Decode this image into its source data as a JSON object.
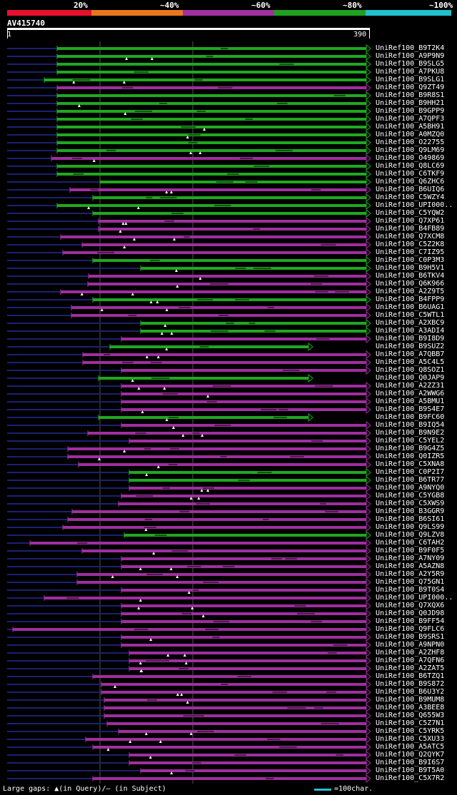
{
  "legend": {
    "labels": [
      "20%",
      "~40%",
      "~60%",
      "~80%",
      "~100%"
    ],
    "colors": [
      "#e8102e",
      "#e8781e",
      "#a030a0",
      "#20a020",
      "#22c0cc"
    ]
  },
  "query": {
    "name": "AV415740",
    "start": "1",
    "end": "390"
  },
  "footer": {
    "gaps_text": "Large gaps: ▲(in Query)/– (in Subject)",
    "scale_text": "=100char."
  },
  "colors": {
    "green": "#1fa81f",
    "purple": "#a02ea0",
    "unaligned": "#1a2270",
    "grid": "#555555"
  },
  "hits": [
    {
      "label": "UniRef100_B9T2K4",
      "c": "g"
    },
    {
      "label": "UniRef100_A9P9N9",
      "c": "g"
    },
    {
      "label": "UniRef100_B9SLG5",
      "c": "g"
    },
    {
      "label": "UniRef100_A7PKU8",
      "c": "g"
    },
    {
      "label": "UniRef100_B9SLG1",
      "c": "g"
    },
    {
      "label": "UniRef100_Q9ZT49",
      "c": "p"
    },
    {
      "label": "UniRef100_B9R8S1",
      "c": "g"
    },
    {
      "label": "UniRef100_B9HH21",
      "c": "g"
    },
    {
      "label": "UniRef100_B9GPP9",
      "c": "g"
    },
    {
      "label": "UniRef100_A7QPF3",
      "c": "g"
    },
    {
      "label": "UniRef100_A5BH91",
      "c": "g"
    },
    {
      "label": "UniRef100_A0MZQ0",
      "c": "g"
    },
    {
      "label": "UniRef100_O22755",
      "c": "g"
    },
    {
      "label": "UniRef100_Q9LM69",
      "c": "g"
    },
    {
      "label": "UniRef100_O49869",
      "c": "p"
    },
    {
      "label": "UniRef100_Q8LC69",
      "c": "g"
    },
    {
      "label": "UniRef100_C6TKF9",
      "c": "g"
    },
    {
      "label": "UniRef100_Q6ZHC6",
      "c": "g"
    },
    {
      "label": "UniRef100_B6UIQ6",
      "c": "p"
    },
    {
      "label": "UniRef100_C5WZY4",
      "c": "g"
    },
    {
      "label": "UniRef100_UPI000..",
      "c": "g"
    },
    {
      "label": "UniRef100_C5YQW2",
      "c": "g"
    },
    {
      "label": "UniRef100_Q7XP61",
      "c": "p"
    },
    {
      "label": "UniRef100_B4FB89",
      "c": "p"
    },
    {
      "label": "UniRef100_Q7XCM8",
      "c": "p"
    },
    {
      "label": "UniRef100_C5Z2K8",
      "c": "p"
    },
    {
      "label": "UniRef100_C7IZ95",
      "c": "p"
    },
    {
      "label": "UniRef100_C0P3M3",
      "c": "g"
    },
    {
      "label": "UniRef100_B9H5V1",
      "c": "g"
    },
    {
      "label": "UniRef100_B6TKV4",
      "c": "p"
    },
    {
      "label": "UniRef100_Q6K966",
      "c": "p"
    },
    {
      "label": "UniRef100_A2Z9T5",
      "c": "p"
    },
    {
      "label": "UniRef100_B4FPP9",
      "c": "g"
    },
    {
      "label": "UniRef100_B6UAG1",
      "c": "p"
    },
    {
      "label": "UniRef100_C5WTL1",
      "c": "p"
    },
    {
      "label": "UniRef100_A2XBC9",
      "c": "g"
    },
    {
      "label": "UniRef100_A3ADI4",
      "c": "g"
    },
    {
      "label": "UniRef100_B9I8D9",
      "c": "p"
    },
    {
      "label": "UniRef100_B9SUZ2",
      "c": "g"
    },
    {
      "label": "UniRef100_A7QBB7",
      "c": "p"
    },
    {
      "label": "UniRef100_A5C4L5",
      "c": "p"
    },
    {
      "label": "UniRef100_Q8SOZ1",
      "c": "p"
    },
    {
      "label": "UniRef100_Q0JAP9",
      "c": "g"
    },
    {
      "label": "UniRef100_A2ZZ31",
      "c": "p"
    },
    {
      "label": "UniRef100_A2WWG6",
      "c": "p"
    },
    {
      "label": "UniRef100_A5BMU1",
      "c": "p"
    },
    {
      "label": "UniRef100_B9S4E7",
      "c": "p"
    },
    {
      "label": "UniRef100_B9FC60",
      "c": "g"
    },
    {
      "label": "UniRef100_B9IQ54",
      "c": "p"
    },
    {
      "label": "UniRef100_B9N9E2",
      "c": "p"
    },
    {
      "label": "UniRef100_C5YEL2",
      "c": "p"
    },
    {
      "label": "UniRef100_B9G4Z5",
      "c": "p"
    },
    {
      "label": "UniRef100_Q0IZR5",
      "c": "p"
    },
    {
      "label": "UniRef100_C5XNA8",
      "c": "p"
    },
    {
      "label": "UniRef100_C0P2I7",
      "c": "g"
    },
    {
      "label": "UniRef100_B6TR77",
      "c": "g"
    },
    {
      "label": "UniRef100_A9NYQ0",
      "c": "p"
    },
    {
      "label": "UniRef100_C5YGB8",
      "c": "p"
    },
    {
      "label": "UniRef100_C5XWS9",
      "c": "p"
    },
    {
      "label": "UniRef100_B3GGR9",
      "c": "p"
    },
    {
      "label": "UniRef100_B6SI61",
      "c": "p"
    },
    {
      "label": "UniRef100_Q9LS99",
      "c": "p"
    },
    {
      "label": "UniRef100_Q9LZV8",
      "c": "g"
    },
    {
      "label": "UniRef100_C6TAH2",
      "c": "p"
    },
    {
      "label": "UniRef100_B9F0F5",
      "c": "p"
    },
    {
      "label": "UniRef100_A7NY09",
      "c": "p"
    },
    {
      "label": "UniRef100_A5AZN8",
      "c": "p"
    },
    {
      "label": "UniRef100_A2Y5R9",
      "c": "p"
    },
    {
      "label": "UniRef100_Q75GN1",
      "c": "p"
    },
    {
      "label": "UniRef100_B9T0S4",
      "c": "p"
    },
    {
      "label": "UniRef100_UPI000..",
      "c": "p"
    },
    {
      "label": "UniRef100_Q7XQX6",
      "c": "p"
    },
    {
      "label": "UniRef100_Q0JD98",
      "c": "p"
    },
    {
      "label": "UniRef100_B9FF54",
      "c": "p"
    },
    {
      "label": "UniRef100_Q9FLC6",
      "c": "p"
    },
    {
      "label": "UniRef100_B9SRS1",
      "c": "p"
    },
    {
      "label": "UniRef100_A9NPN0",
      "c": "p"
    },
    {
      "label": "UniRef100_A2ZHF8",
      "c": "p"
    },
    {
      "label": "UniRef100_A7QFN6",
      "c": "p"
    },
    {
      "label": "UniRef100_A2ZAT5",
      "c": "p"
    },
    {
      "label": "UniRef100_B6TZQ1",
      "c": "p"
    },
    {
      "label": "UniRef100_B9S872",
      "c": "p"
    },
    {
      "label": "UniRef100_B6U3Y2",
      "c": "p"
    },
    {
      "label": "UniRef100_B9MUM8",
      "c": "p"
    },
    {
      "label": "UniRef100_A3BEE8",
      "c": "p"
    },
    {
      "label": "UniRef100_Q655W3",
      "c": "p"
    },
    {
      "label": "UniRef100_C5Z7N1",
      "c": "p"
    },
    {
      "label": "UniRef100_C5YRK5",
      "c": "p"
    },
    {
      "label": "UniRef100_C5XU33",
      "c": "p"
    },
    {
      "label": "UniRef100_A5ATC5",
      "c": "p"
    },
    {
      "label": "UniRef100_Q2QYK7",
      "c": "p"
    },
    {
      "label": "UniRef100_B9I6S7",
      "c": "p"
    },
    {
      "label": "UniRef100_B9T5A0",
      "c": "p"
    },
    {
      "label": "UniRef100_C5X7R2",
      "c": "p"
    }
  ]
}
